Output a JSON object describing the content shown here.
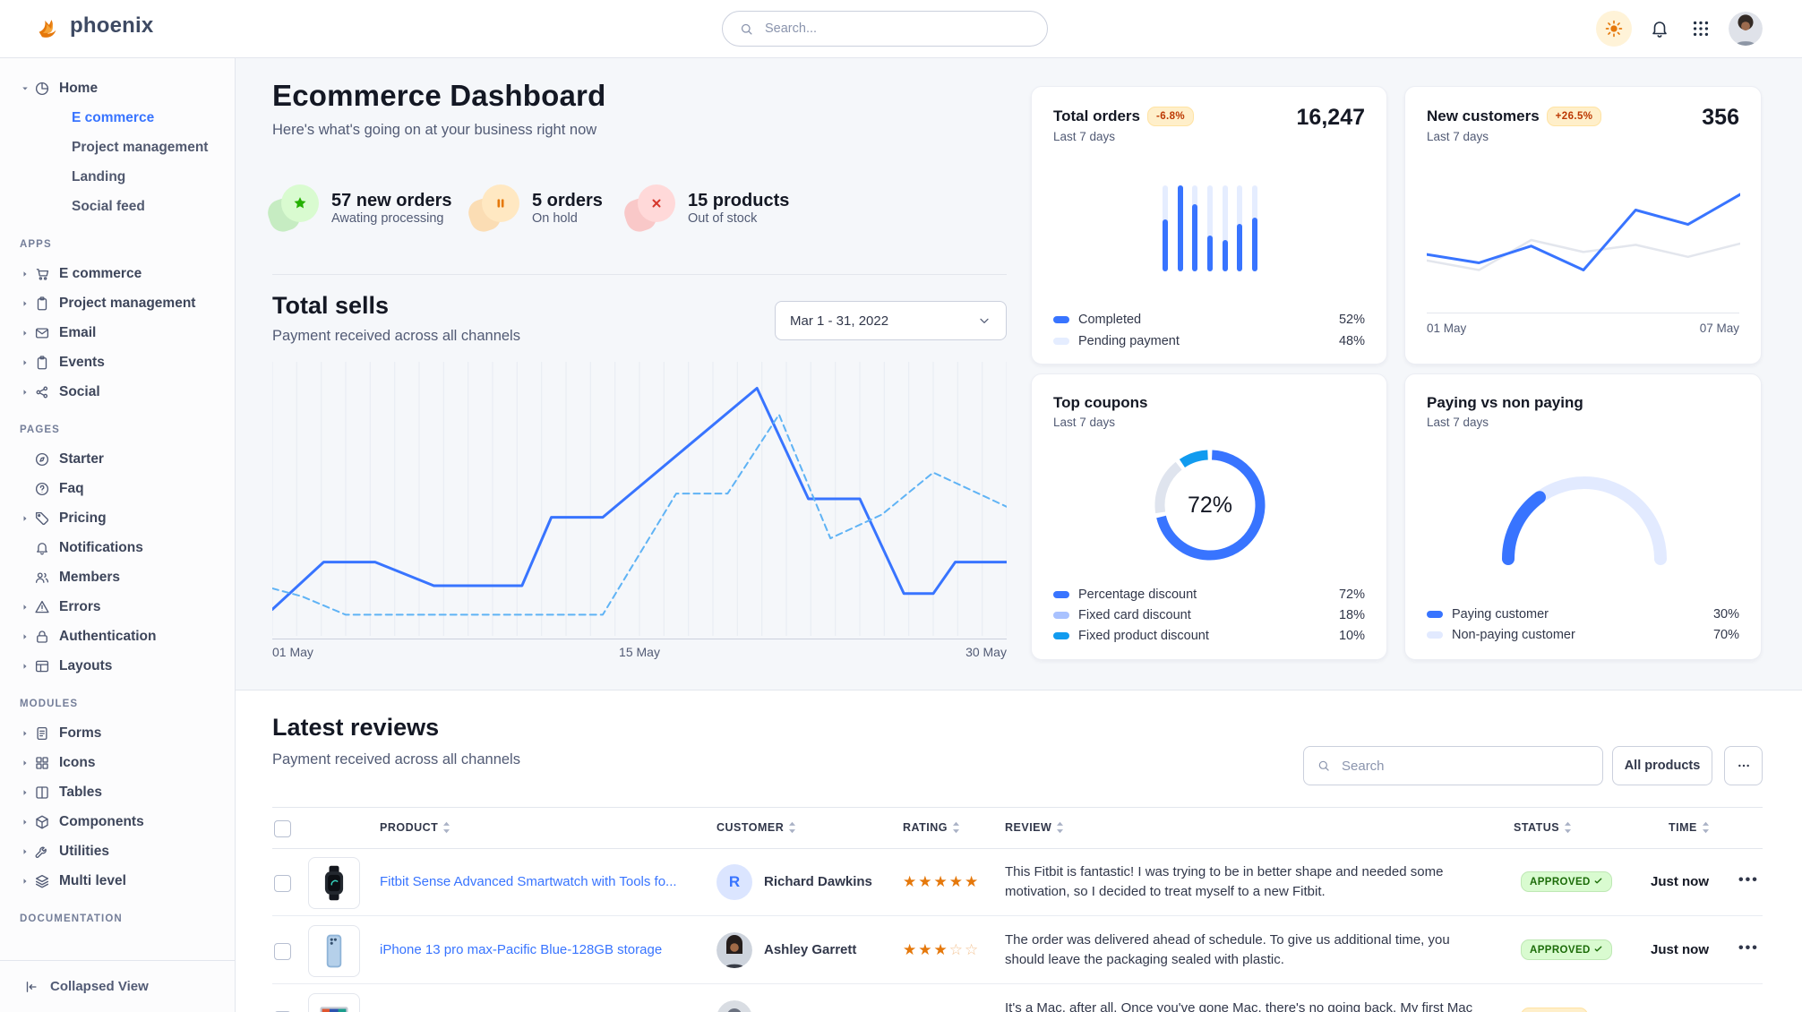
{
  "brand": {
    "name": "phoenix"
  },
  "navbar": {
    "search_placeholder": "Search...",
    "icons": {
      "theme": "sun",
      "notifications": "bell",
      "apps": "grid-9-dots",
      "profile": "avatar-photo"
    }
  },
  "sidebar": {
    "home_label": "Home",
    "home_children": [
      {
        "label": "E commerce",
        "active": true
      },
      {
        "label": "Project management",
        "active": false
      },
      {
        "label": "Landing",
        "active": false
      },
      {
        "label": "Social feed",
        "active": false
      }
    ],
    "sections": [
      {
        "label": "APPS",
        "items": [
          {
            "label": "E commerce",
            "icon": "cart",
            "caret": true
          },
          {
            "label": "Project management",
            "icon": "clipboard",
            "caret": true
          },
          {
            "label": "Email",
            "icon": "envelope",
            "caret": true
          },
          {
            "label": "Events",
            "icon": "clipboard",
            "caret": true
          },
          {
            "label": "Social",
            "icon": "share",
            "caret": true
          }
        ]
      },
      {
        "label": "PAGES",
        "items": [
          {
            "label": "Starter",
            "icon": "compass",
            "caret": false
          },
          {
            "label": "Faq",
            "icon": "question",
            "caret": false
          },
          {
            "label": "Pricing",
            "icon": "tag",
            "caret": true
          },
          {
            "label": "Notifications",
            "icon": "bell",
            "caret": false
          },
          {
            "label": "Members",
            "icon": "users",
            "caret": false
          },
          {
            "label": "Errors",
            "icon": "warning",
            "caret": true
          },
          {
            "label": "Authentication",
            "icon": "lock",
            "caret": true
          },
          {
            "label": "Layouts",
            "icon": "layout",
            "caret": true
          }
        ]
      },
      {
        "label": "MODULES",
        "items": [
          {
            "label": "Forms",
            "icon": "file",
            "caret": true
          },
          {
            "label": "Icons",
            "icon": "icons",
            "caret": true
          },
          {
            "label": "Tables",
            "icon": "table",
            "caret": true
          },
          {
            "label": "Components",
            "icon": "box",
            "caret": true
          },
          {
            "label": "Utilities",
            "icon": "wrench",
            "caret": true
          },
          {
            "label": "Multi level",
            "icon": "layers",
            "caret": true
          }
        ]
      },
      {
        "label": "DOCUMENTATION",
        "items": []
      }
    ],
    "collapse_label": "Collapsed View"
  },
  "page": {
    "title": "Ecommerce Dashboard",
    "subtitle": "Here's what's going on at your business right now",
    "stats": [
      {
        "title": "57 new orders",
        "caption": "Awating processing",
        "icon": "star",
        "color": "green"
      },
      {
        "title": "5 orders",
        "caption": "On hold",
        "icon": "pause",
        "color": "orange"
      },
      {
        "title": "15 products",
        "caption": "Out of stock",
        "icon": "x",
        "color": "red"
      }
    ],
    "total_sells": {
      "title": "Total sells",
      "subtitle": "Payment received across all channels",
      "date_range": "Mar 1 - 31, 2022"
    }
  },
  "cards": {
    "total_orders": {
      "title": "Total orders",
      "period": "Last 7 days",
      "badge": "-6.8%",
      "value": "16,247"
    },
    "new_customers": {
      "title": "New customers",
      "period": "Last 7 days",
      "badge": "+26.5%",
      "value": "356"
    },
    "top_coupons": {
      "title": "Top coupons",
      "period": "Last 7 days"
    },
    "paying": {
      "title": "Paying vs non paying",
      "period": "Last 7 days"
    }
  },
  "reviews": {
    "title": "Latest reviews",
    "subtitle": "Payment received across all channels",
    "search_placeholder": "Search",
    "filter_button": "All products",
    "more_button": "...",
    "columns": [
      "PRODUCT",
      "CUSTOMER",
      "RATING",
      "REVIEW",
      "STATUS",
      "TIME"
    ],
    "rows": [
      {
        "product": "Fitbit Sense Advanced Smartwatch with Tools fo...",
        "thumb": "smartwatch",
        "customer": "Richard Dawkins",
        "avatar": "initial",
        "avatar_initial": "R",
        "rating": 5,
        "review": "This Fitbit is fantastic! I was trying to be in better shape and needed some motivation, so I decided to treat myself to a new Fitbit.",
        "status": "APPROVED",
        "time": "Just now"
      },
      {
        "product": "iPhone 13 pro max-Pacific Blue-128GB storage",
        "thumb": "phone",
        "customer": "Ashley Garrett",
        "avatar": "photo",
        "avatar_initial": "",
        "rating": 3,
        "review": "The order was delivered ahead of schedule. To give us additional time, you should leave the packaging sealed with plastic.",
        "status": "APPROVED",
        "time": "Just now"
      },
      {
        "product": "",
        "thumb": "imac",
        "customer": "",
        "avatar": "photo",
        "avatar_initial": "",
        "rating": 0,
        "review": "It's a Mac, after all. Once you've gone Mac, there's no going back. My first Mac lasted...",
        "status": "PENDING",
        "time": ""
      }
    ]
  },
  "chart_data": [
    {
      "id": "total_sells",
      "type": "line",
      "title": "Total sells",
      "x_tick_labels": [
        "01 May",
        "15 May",
        "30 May"
      ],
      "grid": "vertical",
      "gridline_count": 31,
      "legend_position": "none",
      "y_unit": "percent_of_plot_height",
      "series": [
        {
          "name": "total sells",
          "line": "solid",
          "color": "#3874ff",
          "points": [
            [
              0,
              8
            ],
            [
              7,
              26
            ],
            [
              14,
              26
            ],
            [
              22,
              17
            ],
            [
              34,
              17
            ],
            [
              38,
              43
            ],
            [
              45,
              43
            ],
            [
              66,
              92
            ],
            [
              73,
              50
            ],
            [
              80,
              50
            ],
            [
              86,
              14
            ],
            [
              90,
              14
            ],
            [
              93,
              26
            ],
            [
              100,
              26
            ]
          ]
        },
        {
          "name": "comparison",
          "line": "dashed",
          "color": "#5fb3f5",
          "points": [
            [
              0,
              16
            ],
            [
              4,
              13
            ],
            [
              10,
              6
            ],
            [
              45,
              6
            ],
            [
              55,
              52
            ],
            [
              62,
              52
            ],
            [
              69,
              82
            ],
            [
              76,
              35
            ],
            [
              83,
              44
            ],
            [
              90,
              60
            ],
            [
              100,
              47
            ]
          ]
        }
      ]
    },
    {
      "id": "total_orders",
      "type": "bar",
      "bar_values_completed_pct": [
        60,
        100,
        78,
        42,
        36,
        55,
        62
      ],
      "bar_track_pct": 100,
      "colors": {
        "completed": "#3874ff",
        "pending": "#e5edff"
      },
      "legend": [
        {
          "label": "Completed",
          "value": "52%",
          "color": "#3874ff"
        },
        {
          "label": "Pending payment",
          "value": "48%",
          "color": "#e5edff"
        }
      ]
    },
    {
      "id": "new_customers",
      "type": "line",
      "x_tick_labels": [
        "01 May",
        "07 May"
      ],
      "series": [
        {
          "name": "previous",
          "color": "#e3e6ed",
          "values": [
            30,
            22,
            47,
            37,
            43,
            33,
            44
          ]
        },
        {
          "name": "current",
          "color": "#3874ff",
          "values": [
            35,
            28,
            42,
            22,
            72,
            60,
            85
          ]
        }
      ]
    },
    {
      "id": "top_coupons",
      "type": "donut",
      "center_label": "72%",
      "slices": [
        {
          "label": "Percentage discount",
          "value": 72,
          "value_label": "72%",
          "color": "#3874ff",
          "legend_color": "#3874ff"
        },
        {
          "label": "Fixed card discount",
          "value": 18,
          "value_label": "18%",
          "color": "#dfe4ee",
          "legend_color": "#a9c2ff"
        },
        {
          "label": "Fixed product discount",
          "value": 10,
          "value_label": "10%",
          "color": "#119bef",
          "legend_color": "#119bef"
        }
      ]
    },
    {
      "id": "paying_gauge",
      "type": "gauge",
      "slices": [
        {
          "label": "Paying customer",
          "value": 30,
          "value_label": "30%",
          "color": "#3874ff"
        },
        {
          "label": "Non-paying customer",
          "value": 70,
          "value_label": "70%",
          "color": "#e2eaff"
        }
      ]
    }
  ]
}
